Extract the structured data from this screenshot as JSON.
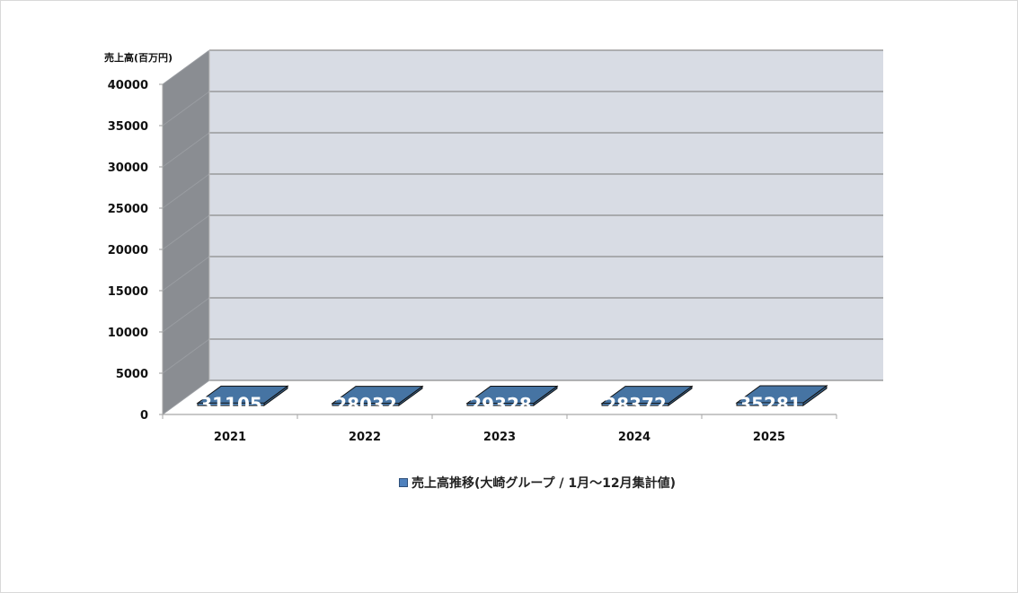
{
  "chart_data": {
    "type": "bar",
    "style": "3d-column",
    "title": "",
    "ylabel": "売上高(百万円)",
    "xlabel": "",
    "categories": [
      "2021",
      "2022",
      "2023",
      "2024",
      "2025"
    ],
    "series": [
      {
        "name": "売上高推移(大崎グループ / 1月〜12月集計値)",
        "values": [
          31105,
          28032,
          29328,
          28372,
          35281
        ],
        "color": "#5b93cb"
      }
    ],
    "data_labels": [
      "31105",
      "28032",
      "29328",
      "28372",
      "35281"
    ],
    "yticks": [
      "0",
      "5000",
      "10000",
      "15000",
      "20000",
      "25000",
      "30000",
      "35000",
      "40000"
    ],
    "ylim": [
      0,
      40000
    ],
    "grid": true,
    "legend_position": "bottom"
  },
  "colors": {
    "bar_front": "#5b93cb",
    "bar_top": "#4674a3",
    "bar_side": "#375f85",
    "back_wall": "#d8dce4",
    "side_wall": "#8a8d92",
    "gridline": "#8c8c8c"
  },
  "legend": {
    "label": "売上高推移(大崎グループ / 1月〜12月集計値)"
  }
}
